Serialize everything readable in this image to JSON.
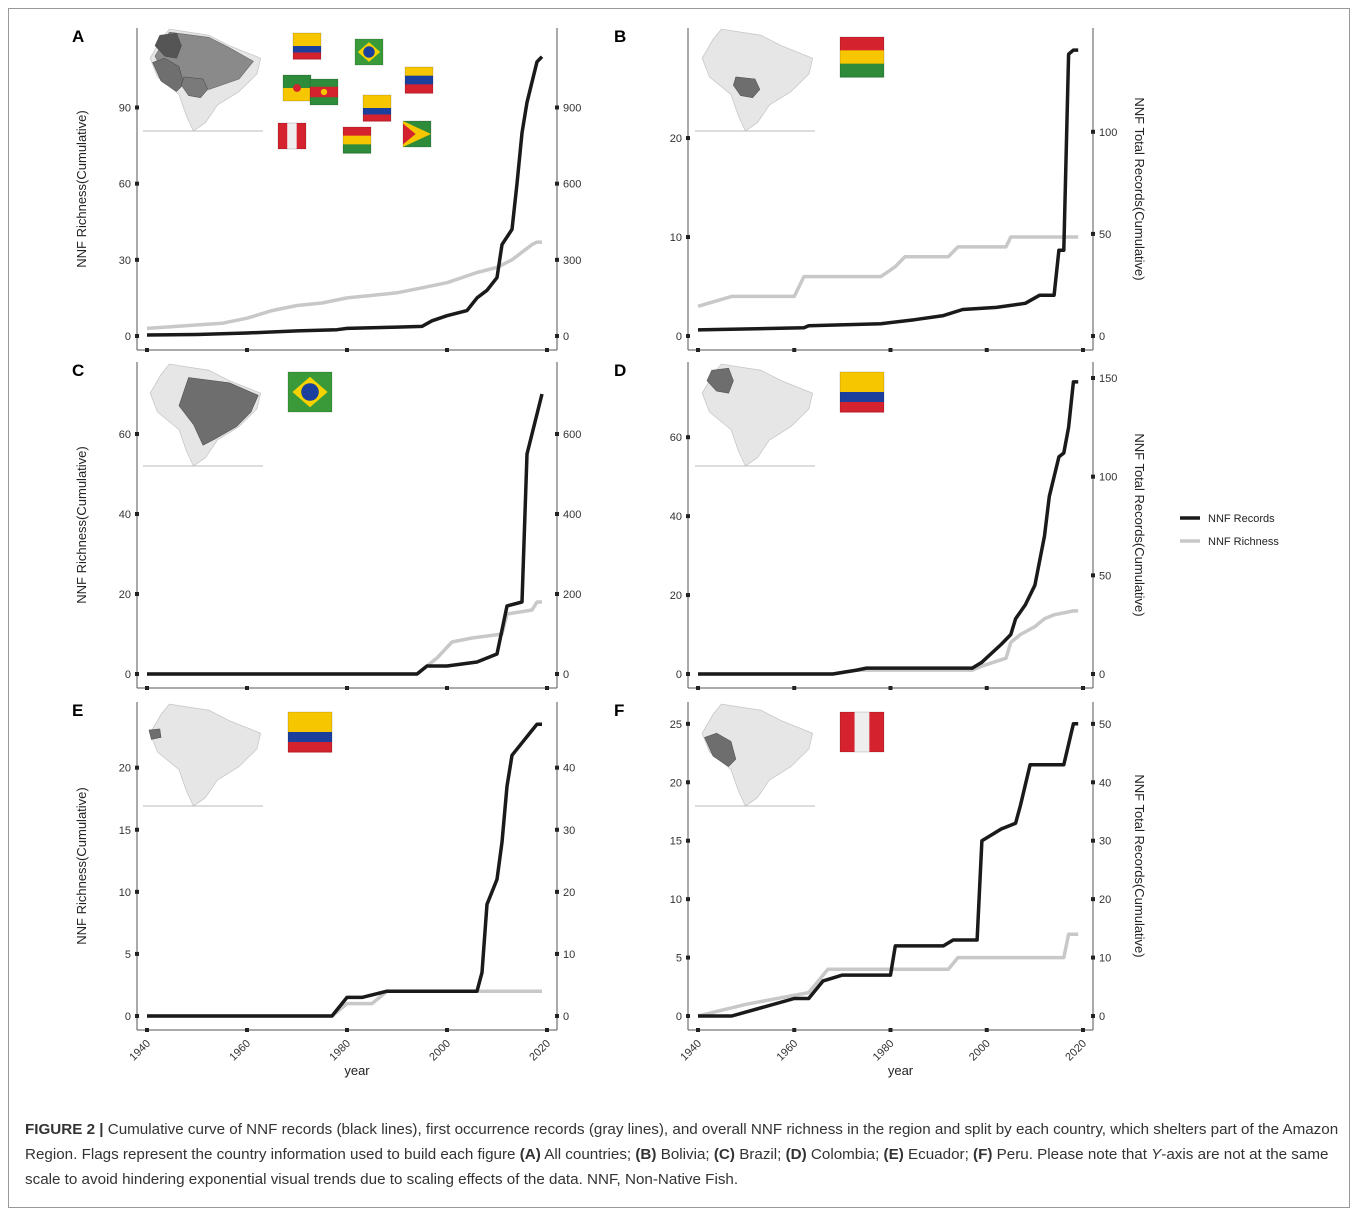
{
  "chart_data": [
    {
      "id": "A",
      "type": "line",
      "label": "A",
      "ylabel_left": "NNF Richness(Cumulative)",
      "ylabel_right": "",
      "xlim": [
        1940,
        2020
      ],
      "left_ticks": [
        0,
        30,
        60,
        90
      ],
      "left_lim": [
        0,
        115
      ],
      "right_ticks": [
        0,
        300,
        600,
        900
      ],
      "right_lim": [
        0,
        1150
      ],
      "x_ticks": [
        1940,
        1960,
        1980,
        2000,
        2020
      ],
      "x_tick_labels": false,
      "x_title": "",
      "map": {
        "highlight": "all"
      },
      "flags": [
        "colombia",
        "brazil",
        "venezuela",
        "french-guiana",
        "suriname",
        "ecuador",
        "peru",
        "bolivia",
        "guyana"
      ],
      "series": [
        {
          "name": "NNF Records",
          "color": "#1a1a1a",
          "axis": "right",
          "points": [
            [
              1940,
              4
            ],
            [
              1950,
              6
            ],
            [
              1960,
              12
            ],
            [
              1970,
              20
            ],
            [
              1978,
              25
            ],
            [
              1980,
              30
            ],
            [
              1990,
              35
            ],
            [
              1995,
              38
            ],
            [
              1997,
              60
            ],
            [
              2000,
              80
            ],
            [
              2004,
              100
            ],
            [
              2006,
              150
            ],
            [
              2008,
              180
            ],
            [
              2010,
              230
            ],
            [
              2011,
              360
            ],
            [
              2013,
              420
            ],
            [
              2014,
              600
            ],
            [
              2015,
              800
            ],
            [
              2016,
              920
            ],
            [
              2017,
              1000
            ],
            [
              2018,
              1080
            ],
            [
              2019,
              1100
            ]
          ]
        },
        {
          "name": "NNF Richness",
          "color": "#c8c8c8",
          "axis": "left",
          "points": [
            [
              1940,
              3
            ],
            [
              1955,
              5
            ],
            [
              1960,
              7
            ],
            [
              1965,
              10
            ],
            [
              1970,
              12
            ],
            [
              1975,
              13
            ],
            [
              1980,
              15
            ],
            [
              1985,
              16
            ],
            [
              1990,
              17
            ],
            [
              1995,
              19
            ],
            [
              2000,
              21
            ],
            [
              2003,
              23
            ],
            [
              2006,
              25
            ],
            [
              2010,
              27
            ],
            [
              2013,
              30
            ],
            [
              2015,
              33
            ],
            [
              2017,
              36
            ],
            [
              2018,
              37
            ],
            [
              2019,
              37
            ]
          ]
        }
      ]
    },
    {
      "id": "B",
      "type": "line",
      "label": "B",
      "ylabel_left": "",
      "ylabel_right": "NNF Total Records(Cumulative)",
      "xlim": [
        1940,
        2020
      ],
      "left_ticks": [
        0,
        10,
        20
      ],
      "left_lim": [
        0,
        29.5
      ],
      "right_ticks": [
        0,
        50,
        100
      ],
      "right_lim": [
        0,
        143
      ],
      "x_ticks": [
        1940,
        1960,
        1980,
        2000,
        2020
      ],
      "x_tick_labels": false,
      "x_title": "",
      "map": {
        "highlight": "bolivia"
      },
      "flags": [
        "bolivia"
      ],
      "series": [
        {
          "name": "NNF Records",
          "color": "#1a1a1a",
          "axis": "right",
          "points": [
            [
              1940,
              3
            ],
            [
              1962,
              4
            ],
            [
              1963,
              5
            ],
            [
              1978,
              6
            ],
            [
              1985,
              8
            ],
            [
              1991,
              10
            ],
            [
              1995,
              13
            ],
            [
              2002,
              14
            ],
            [
              2008,
              16
            ],
            [
              2011,
              20
            ],
            [
              2014,
              20
            ],
            [
              2015,
              42
            ],
            [
              2016,
              42
            ],
            [
              2017,
              138
            ],
            [
              2018,
              140
            ],
            [
              2019,
              140
            ]
          ]
        },
        {
          "name": "NNF Richness",
          "color": "#c8c8c8",
          "axis": "left",
          "points": [
            [
              1940,
              3
            ],
            [
              1947,
              4
            ],
            [
              1960,
              4
            ],
            [
              1962,
              6
            ],
            [
              1978,
              6
            ],
            [
              1981,
              7
            ],
            [
              1983,
              8
            ],
            [
              1992,
              8
            ],
            [
              1994,
              9
            ],
            [
              2004,
              9
            ],
            [
              2005,
              10
            ],
            [
              2019,
              10
            ]
          ]
        }
      ]
    },
    {
      "id": "C",
      "type": "line",
      "label": "C",
      "ylabel_left": "NNF Richness(Cumulative)",
      "ylabel_right": "",
      "xlim": [
        1940,
        2020
      ],
      "left_ticks": [
        0,
        20,
        40,
        60
      ],
      "left_lim": [
        0,
        74
      ],
      "right_ticks": [
        0,
        200,
        400,
        600
      ],
      "right_lim": [
        0,
        740
      ],
      "x_ticks": [
        1940,
        1960,
        1980,
        2000,
        2020
      ],
      "x_tick_labels": false,
      "x_title": "",
      "map": {
        "highlight": "brazil"
      },
      "flags": [
        "brazil"
      ],
      "series": [
        {
          "name": "NNF Records",
          "color": "#1a1a1a",
          "axis": "right",
          "points": [
            [
              1940,
              0
            ],
            [
              1994,
              0
            ],
            [
              1996,
              20
            ],
            [
              2000,
              20
            ],
            [
              2003,
              25
            ],
            [
              2006,
              30
            ],
            [
              2008,
              40
            ],
            [
              2010,
              50
            ],
            [
              2012,
              170
            ],
            [
              2015,
              180
            ],
            [
              2016,
              550
            ],
            [
              2018,
              650
            ],
            [
              2019,
              700
            ]
          ]
        },
        {
          "name": "NNF Richness",
          "color": "#c8c8c8",
          "axis": "left",
          "points": [
            [
              1940,
              0
            ],
            [
              1994,
              0
            ],
            [
              1996,
              2
            ],
            [
              1998,
              4
            ],
            [
              2001,
              8
            ],
            [
              2005,
              9
            ],
            [
              2011,
              10
            ],
            [
              2012,
              15
            ],
            [
              2017,
              16
            ],
            [
              2018,
              18
            ],
            [
              2019,
              18
            ]
          ]
        }
      ]
    },
    {
      "id": "D",
      "type": "line",
      "label": "D",
      "ylabel_left": "",
      "ylabel_right": "NNF Total Records(Cumulative)",
      "xlim": [
        1940,
        2020
      ],
      "left_ticks": [
        0,
        20,
        40,
        60
      ],
      "left_lim": [
        0,
        75
      ],
      "right_ticks": [
        0,
        50,
        100,
        150
      ],
      "right_lim": [
        0,
        150
      ],
      "x_ticks": [
        1940,
        1960,
        1980,
        2000,
        2020
      ],
      "x_tick_labels": false,
      "x_title": "",
      "map": {
        "highlight": "colombia"
      },
      "flags": [
        "colombia"
      ],
      "series": [
        {
          "name": "NNF Records",
          "color": "#1a1a1a",
          "axis": "right",
          "points": [
            [
              1940,
              0
            ],
            [
              1968,
              0
            ],
            [
              1973,
              2
            ],
            [
              1975,
              3
            ],
            [
              1997,
              3
            ],
            [
              1999,
              6
            ],
            [
              2003,
              15
            ],
            [
              2005,
              20
            ],
            [
              2006,
              28
            ],
            [
              2008,
              35
            ],
            [
              2010,
              45
            ],
            [
              2012,
              70
            ],
            [
              2013,
              90
            ],
            [
              2015,
              110
            ],
            [
              2016,
              112
            ],
            [
              2017,
              125
            ],
            [
              2018,
              148
            ],
            [
              2019,
              148
            ]
          ]
        },
        {
          "name": "NNF Richness",
          "color": "#c8c8c8",
          "axis": "left",
          "points": [
            [
              1940,
              0
            ],
            [
              1968,
              0
            ],
            [
              1973,
              1
            ],
            [
              1997,
              1
            ],
            [
              1999,
              2
            ],
            [
              2004,
              4
            ],
            [
              2005,
              8
            ],
            [
              2007,
              10
            ],
            [
              2010,
              12
            ],
            [
              2012,
              14
            ],
            [
              2014,
              15
            ],
            [
              2018,
              16
            ],
            [
              2019,
              16
            ]
          ]
        }
      ]
    },
    {
      "id": "E",
      "type": "line",
      "label": "E",
      "ylabel_left": "NNF Richness(Cumulative)",
      "ylabel_right": "",
      "xlim": [
        1940,
        2020
      ],
      "left_ticks": [
        0,
        5,
        10,
        15,
        20
      ],
      "left_lim": [
        0,
        24
      ],
      "right_ticks": [
        0,
        10,
        20,
        30,
        40
      ],
      "right_lim": [
        0,
        48
      ],
      "x_ticks": [
        1940,
        1960,
        1980,
        2000,
        2020
      ],
      "x_tick_labels": true,
      "x_title": "year",
      "map": {
        "highlight": "ecuador"
      },
      "flags": [
        "ecuador"
      ],
      "series": [
        {
          "name": "NNF Records",
          "color": "#1a1a1a",
          "axis": "right",
          "points": [
            [
              1940,
              0
            ],
            [
              1977,
              0
            ],
            [
              1980,
              3
            ],
            [
              1983,
              3
            ],
            [
              1988,
              4
            ],
            [
              2006,
              4
            ],
            [
              2007,
              7
            ],
            [
              2008,
              18
            ],
            [
              2010,
              22
            ],
            [
              2011,
              28
            ],
            [
              2012,
              37
            ],
            [
              2013,
              42
            ],
            [
              2015,
              44
            ],
            [
              2017,
              46
            ],
            [
              2018,
              47
            ],
            [
              2019,
              47
            ]
          ]
        },
        {
          "name": "NNF Richness",
          "color": "#c8c8c8",
          "axis": "left",
          "points": [
            [
              1940,
              0
            ],
            [
              1977,
              0
            ],
            [
              1980,
              1
            ],
            [
              1985,
              1
            ],
            [
              1988,
              2
            ],
            [
              2019,
              2
            ]
          ]
        }
      ]
    },
    {
      "id": "F",
      "type": "line",
      "label": "F",
      "ylabel_left": "",
      "ylabel_right": "NNF Total Records(Cumulative)",
      "xlim": [
        1940,
        2020
      ],
      "left_ticks": [
        0,
        5,
        10,
        15,
        20,
        25
      ],
      "left_lim": [
        0,
        25.5
      ],
      "right_ticks": [
        0,
        10,
        20,
        30,
        40,
        50
      ],
      "right_lim": [
        0,
        51
      ],
      "x_ticks": [
        1940,
        1960,
        1980,
        2000,
        2020
      ],
      "x_tick_labels": true,
      "x_title": "year",
      "map": {
        "highlight": "peru"
      },
      "flags": [
        "peru"
      ],
      "series": [
        {
          "name": "NNF Records",
          "color": "#1a1a1a",
          "axis": "right",
          "points": [
            [
              1940,
              0
            ],
            [
              1947,
              0
            ],
            [
              1960,
              3
            ],
            [
              1963,
              3
            ],
            [
              1966,
              6
            ],
            [
              1970,
              7
            ],
            [
              1980,
              7
            ],
            [
              1981,
              12
            ],
            [
              1991,
              12
            ],
            [
              1993,
              13
            ],
            [
              1998,
              13
            ],
            [
              1999,
              30
            ],
            [
              2001,
              31
            ],
            [
              2003,
              32
            ],
            [
              2006,
              33
            ],
            [
              2007,
              36
            ],
            [
              2009,
              43
            ],
            [
              2016,
              43
            ],
            [
              2018,
              50
            ],
            [
              2019,
              50
            ]
          ]
        },
        {
          "name": "NNF Richness",
          "color": "#c8c8c8",
          "axis": "left",
          "points": [
            [
              1940,
              0
            ],
            [
              1950,
              1
            ],
            [
              1963,
              2
            ],
            [
              1967,
              4
            ],
            [
              1992,
              4
            ],
            [
              1994,
              5
            ],
            [
              2016,
              5
            ],
            [
              2017,
              7
            ],
            [
              2019,
              7
            ]
          ]
        }
      ]
    }
  ],
  "legend": [
    {
      "label": "NNF Records",
      "color": "#1a1a1a"
    },
    {
      "label": "NNF Richness",
      "color": "#c8c8c8"
    }
  ],
  "caption": {
    "lead": "FIGURE 2 |",
    "text1": " Cumulative curve of NNF records (black lines), first occurrence records (gray lines), and overall NNF richness in the region and split by each country, which shelters part of the Amazon Region. Flags represent the country information used to build each figure ",
    "a": "(A)",
    "a_txt": " All countries; ",
    "b": "(B)",
    "b_txt": " Bolivia; ",
    "c": "(C)",
    "c_txt": " Brazil; ",
    "d": "(D)",
    "d_txt": " Colombia; ",
    "e": "(E)",
    "e_txt": " Ecuador; ",
    "f": "(F)",
    "f_txt": " Peru. Please note that ",
    "yaxis": "Y",
    "tail": "-axis are not at the same scale to avoid hindering exponential visual trends due to scaling effects of the data. NNF, Non-Native Fish."
  }
}
